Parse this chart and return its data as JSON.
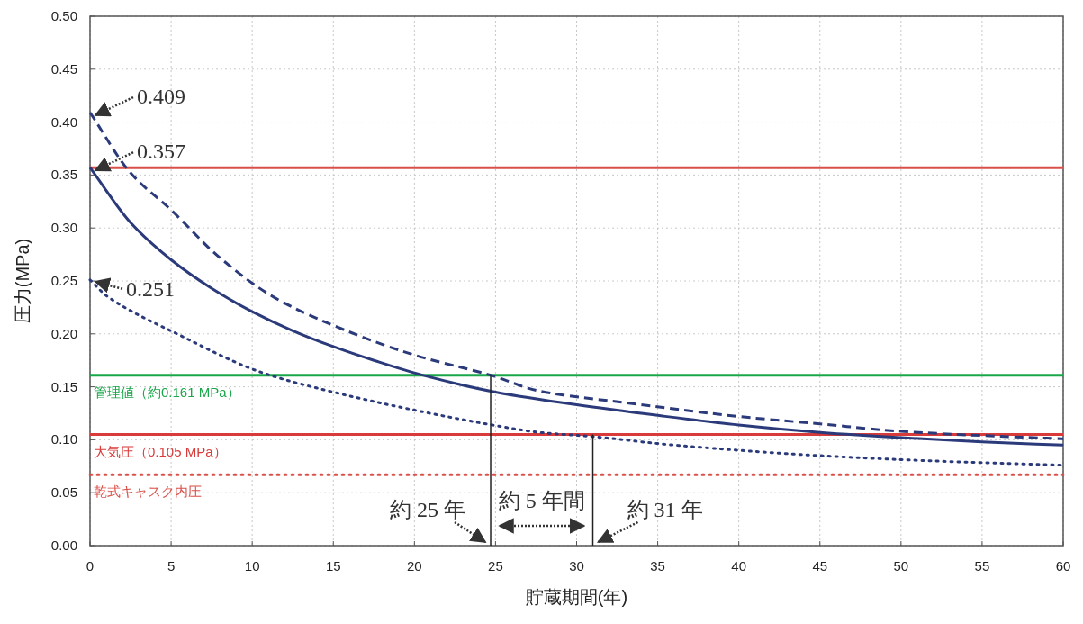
{
  "chart_data": {
    "type": "line",
    "xlabel": "貯蔵期間(年)",
    "ylabel": "圧力(MPa)",
    "xlim": [
      0,
      60
    ],
    "xticks": [
      0,
      5,
      10,
      15,
      20,
      25,
      30,
      35,
      40,
      45,
      50,
      55,
      60
    ],
    "ylim": [
      0,
      0.5
    ],
    "yticks": [
      {
        "value": 0,
        "label": "0.00"
      },
      {
        "value": 0.05,
        "label": "0.05"
      },
      {
        "value": 0.1,
        "label": "0.10"
      },
      {
        "value": 0.15,
        "label": "0.15"
      },
      {
        "value": 0.2,
        "label": "0.20"
      },
      {
        "value": 0.25,
        "label": "0.25"
      },
      {
        "value": 0.3,
        "label": "0.30"
      },
      {
        "value": 0.35,
        "label": "0.35"
      },
      {
        "value": 0.4,
        "label": "0.40"
      },
      {
        "value": 0.45,
        "label": "0.45"
      },
      {
        "value": 0.5,
        "label": "0.50"
      }
    ],
    "grid": true,
    "series": [
      {
        "color": "#2b3a7a",
        "line_style": "solid",
        "x": [
          0,
          2.5,
          5,
          7.5,
          10,
          12.5,
          15,
          17.5,
          20.5,
          25,
          30,
          35,
          40,
          45,
          50,
          55,
          60
        ],
        "values": [
          0.357,
          0.305,
          0.27,
          0.243,
          0.221,
          0.203,
          0.188,
          0.175,
          0.161,
          0.145,
          0.133,
          0.123,
          0.114,
          0.107,
          0.102,
          0.098,
          0.095
        ]
      },
      {
        "color": "#2b3a7a",
        "line_style": "dashed",
        "x": [
          0,
          2.5,
          5,
          8,
          11.3,
          15,
          20,
          24.7,
          27.7,
          33,
          40,
          45,
          50,
          55,
          60
        ],
        "values": [
          0.409,
          0.352,
          0.317,
          0.272,
          0.235,
          0.208,
          0.18,
          0.161,
          0.146,
          0.135,
          0.122,
          0.115,
          0.108,
          0.104,
          0.101
        ]
      },
      {
        "color": "#2b3a7a",
        "line_style": "dotted",
        "x": [
          0,
          1.1,
          5.5,
          10.5,
          15,
          20,
          24.8,
          27.7,
          31,
          36,
          45,
          52,
          60
        ],
        "values": [
          0.251,
          0.235,
          0.199,
          0.164,
          0.145,
          0.128,
          0.114,
          0.107,
          0.103,
          0.095,
          0.085,
          0.08,
          0.076
        ]
      },
      {
        "color": "#222222",
        "line_style": "solid",
        "x": [
          24.7,
          24.7
        ],
        "values": [
          0,
          0.161
        ]
      },
      {
        "color": "#222222",
        "line_style": "solid",
        "x": [
          31,
          31
        ],
        "values": [
          0,
          0.105
        ]
      }
    ],
    "ref_lines": [
      {
        "axis": "y",
        "value": 0.357,
        "color": "#d9504a"
      },
      {
        "axis": "y",
        "value": 0.161,
        "label": "管理値（約0.161 MPa）",
        "color": "#1aa64a"
      },
      {
        "axis": "y",
        "value": 0.105,
        "label": "大気圧（0.105 MPa）",
        "color": "#d93a3a"
      },
      {
        "axis": "y",
        "value": 0.067,
        "label": "乾式キャスク内圧",
        "color": "#d9504a",
        "line_style": "dotted"
      }
    ],
    "annotations": [
      {
        "text": "0.409",
        "x": 0,
        "y": 0.409
      },
      {
        "text": "0.357",
        "x": 0,
        "y": 0.357
      },
      {
        "text": "0.251",
        "x": 0,
        "y": 0.251
      },
      {
        "text": "約 25 年",
        "x": 24.7,
        "y": 0
      },
      {
        "text": "約 31 年",
        "x": 31,
        "y": 0
      },
      "約 5 年間"
    ]
  }
}
